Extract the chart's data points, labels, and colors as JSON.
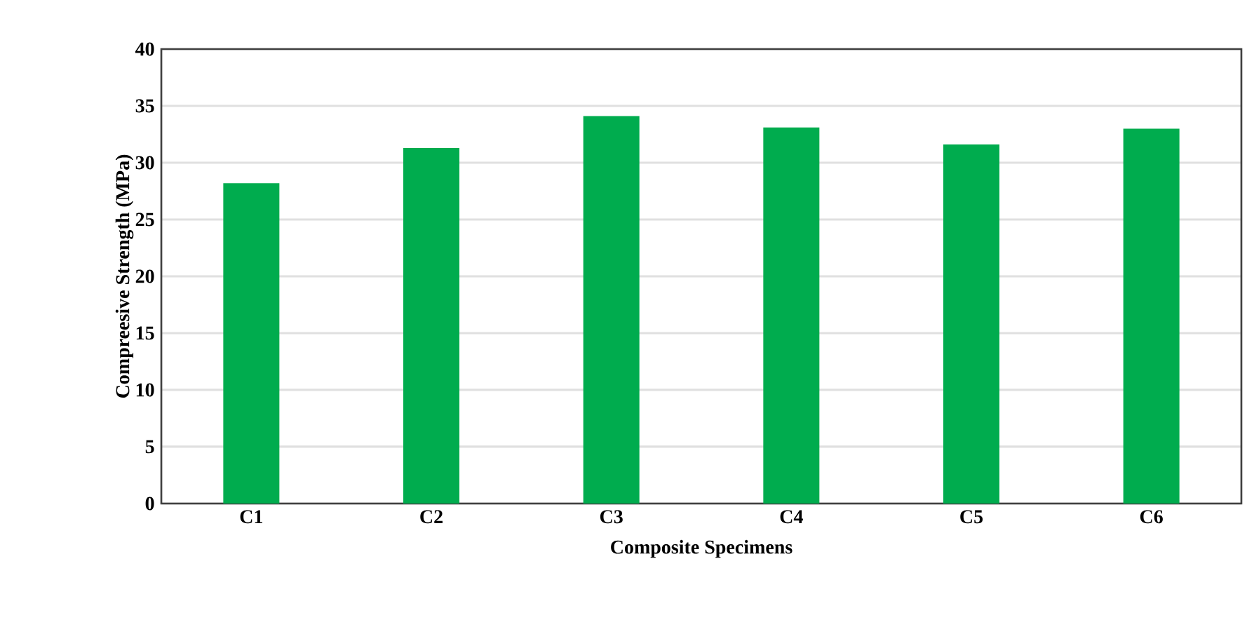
{
  "chart_data": {
    "type": "bar",
    "xlabel": "Composite Specimens",
    "ylabel": "Compreesive Strength (MPa)",
    "categories": [
      "C1",
      "C2",
      "C3",
      "C4",
      "C5",
      "C6"
    ],
    "values": [
      28.2,
      31.3,
      34.1,
      33.1,
      31.6,
      33.0
    ],
    "color": "#00ac4e",
    "ylim": [
      0,
      40
    ],
    "yticks": [
      0,
      5,
      10,
      15,
      20,
      25,
      30,
      35,
      40
    ],
    "grid": "y"
  }
}
